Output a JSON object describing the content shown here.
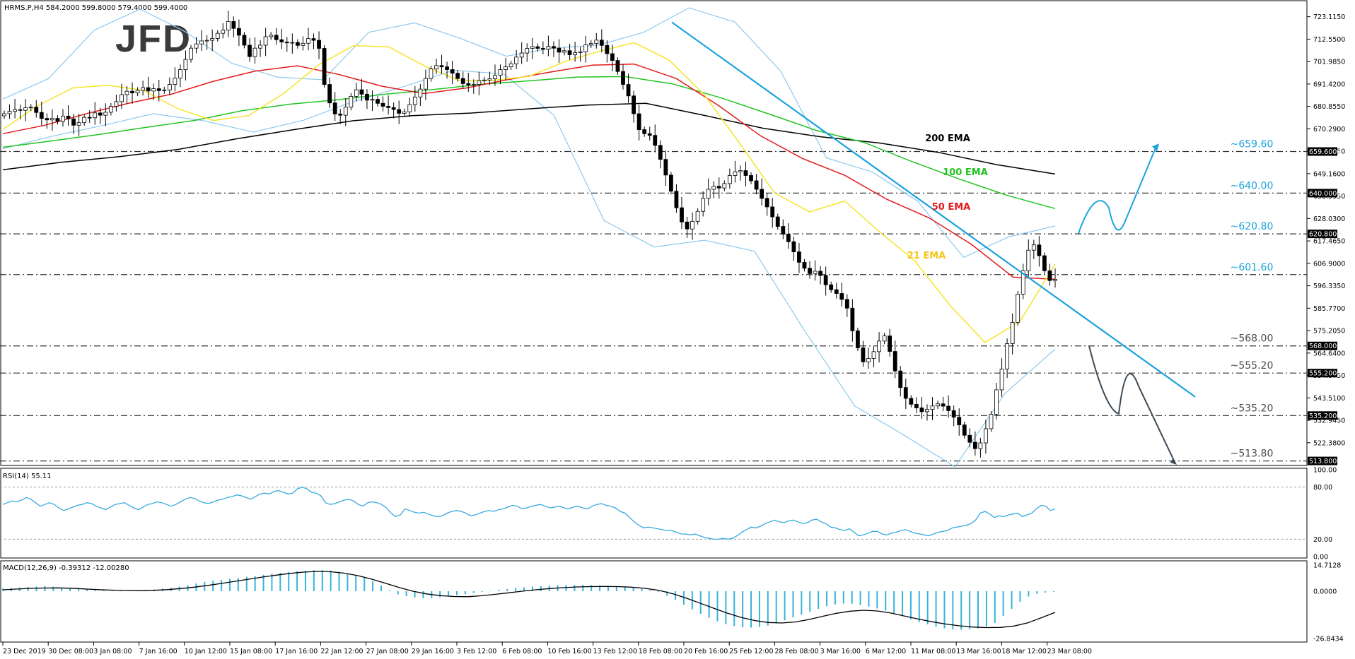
{
  "header": {
    "symbol_info": "HRMS.P,H4  584.2000 599.8000 579.4000 599.4000",
    "logo_text": "JFD"
  },
  "colors": {
    "candle_up": "#ffffff",
    "candle_down": "#000000",
    "ema21": "#f5e52a",
    "ema50": "#e31a1a",
    "ema100": "#22c322",
    "ema200": "#000000",
    "bollinger": "#8ec9ee",
    "trendline": "#1ba3dc",
    "projection_up": "#1ba3dc",
    "projection_down": "#3d4a55",
    "rsi_line": "#36a9e0",
    "macd_hist": "#36b4d9",
    "level_line": "#333333"
  },
  "chart_data": [
    {
      "type": "candlestick",
      "title": "",
      "ylim": [
        512.0,
        727.0
      ],
      "y_ticks": [
        "723.1150",
        "712.5500",
        "701.9850",
        "691.4200",
        "680.8550",
        "670.2900",
        "659.7250",
        "649.1600",
        "638.5950",
        "628.0300",
        "617.4650",
        "606.9000",
        "596.3350",
        "585.7700",
        "575.2050",
        "564.6400",
        "554.0750",
        "543.5100",
        "532.9450",
        "522.3800"
      ],
      "x_ticks": [
        "23 Dec 2019",
        "30 Dec 08:00",
        "3 Jan 08:00",
        "7 Jan 16:00",
        "10 Jan 12:00",
        "15 Jan 08:00",
        "17 Jan 16:00",
        "22 Jan 12:00",
        "27 Jan 08:00",
        "29 Jan 16:00",
        "3 Feb 12:00",
        "6 Feb 08:00",
        "10 Feb 16:00",
        "13 Feb 12:00",
        "18 Feb 08:00",
        "20 Feb 16:00",
        "25 Feb 12:00",
        "28 Feb 08:00",
        "3 Mar 16:00",
        "6 Mar 12:00",
        "11 Mar 08:00",
        "13 Mar 16:00",
        "18 Mar 12:00",
        "23 Mar 08:00"
      ],
      "close_series": [
        677.4,
        678.5,
        679.3,
        679.0,
        680.2,
        680.5,
        678.0,
        675.2,
        674.5,
        675.2,
        673.8,
        676.3,
        675.0,
        672.0,
        673.2,
        675.7,
        675.5,
        677.8,
        676.7,
        678.1,
        680.9,
        683.1,
        686.4,
        688.0,
        687.2,
        688.4,
        689.7,
        688.1,
        689.2,
        688.3,
        688.6,
        691.2,
        694.2,
        698.2,
        703.0,
        708.3,
        710.3,
        711.7,
        712.0,
        712.9,
        715.3,
        716.8,
        720.9,
        717.6,
        714.4,
        709.7,
        704.3,
        708.3,
        709.7,
        713.7,
        714.4,
        712.3,
        711.2,
        710.8,
        711.0,
        709.6,
        710.6,
        712.8,
        712.0,
        708.2,
        691.2,
        682.5,
        677.3,
        676.7,
        680.5,
        685.6,
        688.7,
        686.6,
        683.8,
        684.2,
        682.3,
        680.9,
        680.3,
        679.4,
        677.6,
        678.3,
        681.7,
        685.3,
        689.0,
        694.0,
        698.5,
        700.1,
        699.5,
        698.2,
        696.5,
        694.0,
        691.6,
        691.0,
        691.2,
        693.0,
        693.3,
        693.9,
        695.5,
        698.2,
        699.5,
        700.9,
        704.1,
        706.0,
        708.2,
        709.0,
        708.2,
        707.8,
        709.1,
        708.3,
        706.4,
        707.1,
        705.2,
        706.2,
        706.6,
        709.9,
        710.5,
        712.1,
        709.6,
        705.7,
        702.5,
        697.3,
        691.2,
        685.8,
        677.4,
        669.9,
        668.0,
        667.2,
        662.5,
        655.9,
        648.5,
        640.9,
        633.1,
        626.4,
        623.1,
        626.7,
        631.4,
        637.5,
        641.8,
        643.2,
        642.4,
        644.5,
        648.3,
        650.1,
        650.6,
        648.3,
        645.8,
        641.8,
        637.5,
        633.5,
        628.8,
        624.3,
        620.7,
        617.1,
        612.3,
        607.4,
        604.6,
        602.1,
        603.2,
        601.2,
        596.8,
        594.5,
        592.7,
        589.9,
        585.8,
        575.1,
        567.1,
        560.5,
        562.1,
        565.3,
        570.3,
        572.7,
        565.4,
        556.2,
        548.4,
        543.3,
        540.5,
        538.8,
        537.0,
        538.1,
        539.7,
        540.7,
        539.6,
        537.5,
        534.4,
        530.8,
        525.9,
        522.6,
        519.6,
        522.3,
        529.0,
        535.8,
        547.3,
        557.1,
        569.1,
        579.1,
        592.4,
        603.4,
        613.1,
        615.6,
        610.5,
        603.4,
        598.8,
        599.4
      ],
      "ema21": [
        670.0,
        681.2,
        689.6,
        690.8,
        688.5,
        679.7,
        674.2,
        676.5,
        686.9,
        700.4,
        709.5,
        708.9,
        700.1,
        693.1,
        693.2,
        695.0,
        701.8,
        706.8,
        710.9,
        702.6,
        686.3,
        663.6,
        640.1,
        631.1,
        636.3,
        621.7,
        608.1,
        587.2,
        569.6,
        579.6,
        606.6
      ],
      "ema50": [
        668.0,
        672.0,
        677.5,
        682.4,
        686.6,
        692.7,
        697.5,
        700.0,
        695.8,
        690.4,
        686.9,
        689.5,
        693.5,
        697.0,
        700.3,
        700.8,
        694.0,
        681.3,
        667.0,
        656.3,
        648.4,
        637.1,
        628.4,
        616.0,
        600.4,
        599.4
      ],
      "ema100": [
        661.6,
        664.5,
        667.6,
        671.0,
        674.2,
        678.8,
        681.9,
        684.0,
        686.6,
        688.8,
        691.3,
        692.9,
        694.7,
        694.9,
        691.5,
        685.0,
        677.4,
        669.6,
        663.9,
        654.9,
        646.6,
        638.9,
        632.7
      ],
      "ema200": [
        651.0,
        654.5,
        657.2,
        660.6,
        665.6,
        670.0,
        674.1,
        676.5,
        677.7,
        679.7,
        681.5,
        682.3,
        676.6,
        670.6,
        666.5,
        663.6,
        659.2,
        653.4,
        649.0
      ],
      "bb_upper": [
        684.3,
        694.0,
        716.8,
        726.7,
        715.9,
        701.2,
        694.7,
        693.4,
        715.8,
        720.2,
        712.9,
        704.5,
        708.3,
        709.7,
        715.7,
        727.3,
        720.6,
        697.5,
        656.6,
        650.0,
        636.1,
        609.7,
        619.5,
        624.5
      ],
      "bb_lower": [
        660.9,
        666.9,
        671.9,
        677.4,
        674.1,
        668.8,
        674.3,
        683.2,
        690.2,
        697.9,
        696.1,
        676.6,
        627.0,
        614.6,
        617.8,
        612.6,
        575.2,
        539.7,
        525.7,
        511.1,
        545.6,
        566.5
      ],
      "trendline": {
        "start": [
          "18 Feb 08:00",
          720.5
        ],
        "end": [
          "projection",
          544.0
        ]
      },
      "horizontal_levels": [
        {
          "value": 659.6,
          "label": "~659.60",
          "axis_tag": "659.6000"
        },
        {
          "value": 640.0,
          "label": "~640.00",
          "axis_tag": "640.0000"
        },
        {
          "value": 620.8,
          "label": "~620.80",
          "axis_tag": "620.8000"
        },
        {
          "value": 601.6,
          "label": "~601.60",
          "axis_tag": ""
        },
        {
          "value": 568.0,
          "label": "~568.00",
          "axis_tag": "568.0000"
        },
        {
          "value": 555.2,
          "label": "~555.20",
          "axis_tag": "555.2000"
        },
        {
          "value": 535.2,
          "label": "~535.20",
          "axis_tag": "535.2000"
        },
        {
          "value": 513.8,
          "label": "~513.80",
          "axis_tag": "513.8000"
        }
      ],
      "annotations": [
        {
          "text": "200 EMA",
          "color": "#000000"
        },
        {
          "text": "100 EMA",
          "color": "#22c322"
        },
        {
          "text": "50 EMA",
          "color": "#e31a1a"
        },
        {
          "text": "21 EMA",
          "color": "#f5c518"
        }
      ],
      "projection_up_path": [
        621.0,
        636.0,
        624.0,
        662.0
      ],
      "projection_down_path": [
        568.0,
        540.0,
        555.0,
        513.0
      ]
    },
    {
      "type": "line",
      "title": "RSI(14) 55.11",
      "ylim": [
        0,
        100
      ],
      "y_ticks": [
        "100.00",
        "80.00",
        "20.00",
        "0.00"
      ],
      "levels": [
        80,
        20
      ],
      "values": [
        60,
        62,
        64,
        63,
        65,
        68,
        66,
        62,
        58,
        60,
        62,
        60,
        56,
        53,
        55,
        57,
        59,
        60,
        62,
        61,
        58,
        56,
        54,
        57,
        60,
        61,
        62,
        59,
        56,
        54,
        57,
        60,
        61,
        63,
        62,
        60,
        58,
        60,
        63,
        66,
        68,
        67,
        64,
        62,
        61,
        63,
        65,
        66,
        68,
        69,
        71,
        70,
        68,
        66,
        69,
        72,
        73,
        72,
        75,
        76,
        74,
        72,
        73,
        78,
        80,
        78,
        74,
        73,
        70,
        62,
        60,
        61,
        63,
        65,
        66,
        64,
        60,
        58,
        62,
        63,
        62,
        60,
        56,
        50,
        46,
        48,
        55,
        53,
        51,
        50,
        51,
        49,
        47,
        46,
        47,
        50,
        52,
        53,
        52,
        50,
        47,
        48,
        50,
        52,
        53,
        52,
        54,
        55,
        57,
        59,
        58,
        55,
        56,
        58,
        59,
        60,
        58,
        56,
        57,
        58,
        56,
        55,
        57,
        58,
        56,
        55,
        58,
        60,
        61,
        59,
        58,
        56,
        52,
        50,
        45,
        40,
        36,
        33,
        34,
        33,
        32,
        31,
        30,
        30,
        28,
        26,
        26,
        25,
        26,
        24,
        22,
        21,
        20,
        20,
        21,
        20,
        21,
        24,
        28,
        31,
        34,
        33,
        35,
        38,
        40,
        42,
        40,
        39,
        41,
        42,
        40,
        38,
        39,
        42,
        43,
        40,
        38,
        34,
        33,
        31,
        30,
        32,
        28,
        24,
        25,
        27,
        29,
        29,
        26,
        25,
        27,
        28,
        30,
        31,
        29,
        27,
        26,
        25,
        24,
        26,
        28,
        29,
        30,
        33,
        34,
        35,
        36,
        38,
        42,
        50,
        52,
        49,
        45,
        47,
        46,
        48,
        49,
        50,
        46,
        48,
        50,
        55,
        59,
        58,
        53,
        55
      ],
      "x_ticks": [
        "23 Dec 2019",
        "30 Dec 08:00",
        "3 Jan 08:00",
        "7 Jan 16:00",
        "10 Jan 12:00",
        "15 Jan 08:00",
        "17 Jan 16:00",
        "22 Jan 12:00",
        "27 Jan 08:00",
        "29 Jan 16:00",
        "3 Feb 12:00",
        "6 Feb 08:00",
        "10 Feb 16:00",
        "13 Feb 12:00",
        "18 Feb 08:00",
        "20 Feb 16:00",
        "25 Feb 12:00",
        "28 Feb 08:00",
        "3 Mar 16:00",
        "6 Mar 12:00",
        "11 Mar 08:00",
        "13 Mar 16:00",
        "18 Mar 12:00",
        "23 Mar 08:00"
      ]
    },
    {
      "type": "bar",
      "title": "MACD(12,26,9) -0.39312 -12.00280",
      "ylim": [
        -28.0,
        16.0
      ],
      "y_ticks": [
        "14.7128",
        "0.0000",
        "-26.8434"
      ],
      "histogram": [
        1.5,
        1.8,
        2.1,
        2.4,
        2.6,
        2.8,
        2.5,
        2.0,
        1.6,
        1.3,
        1.1,
        0.9,
        0.6,
        0.4,
        0.2,
        0.1,
        0.3,
        0.6,
        1.0,
        1.4,
        1.9,
        2.6,
        3.4,
        4.4,
        5.3,
        5.9,
        6.4,
        7.0,
        7.5,
        8.1,
        8.6,
        9.3,
        9.9,
        10.4,
        10.9,
        11.3,
        11.6,
        11.9,
        12.0,
        11.7,
        11.0,
        10.0,
        9.0,
        7.5,
        5.6,
        3.2,
        0.5,
        -1.8,
        -2.8,
        -3.6,
        -4.0,
        -3.9,
        -3.5,
        -3.0,
        -2.3,
        -1.7,
        -1.0,
        -0.4,
        0.2,
        0.8,
        1.3,
        1.8,
        2.2,
        2.6,
        2.9,
        3.2,
        3.4,
        3.5,
        3.6,
        3.5,
        3.5,
        3.3,
        3.0,
        2.7,
        2.3,
        1.8,
        1.3,
        0.6,
        -0.5,
        -2.6,
        -5.0,
        -7.6,
        -10.3,
        -12.8,
        -15.1,
        -17.1,
        -18.7,
        -19.8,
        -20.4,
        -20.6,
        -20.3,
        -19.5,
        -18.2,
        -16.5,
        -14.8,
        -13.2,
        -11.6,
        -10.0,
        -8.5,
        -7.5,
        -7.0,
        -7.1,
        -7.8,
        -8.7,
        -9.8,
        -11.0,
        -12.5,
        -14.2,
        -16.0,
        -17.5,
        -18.8,
        -20.1,
        -21.0,
        -21.6,
        -21.8,
        -21.6,
        -21.0,
        -19.9,
        -18.0,
        -14.0,
        -10.0,
        -6.0,
        -3.0,
        -1.5,
        -0.8,
        -0.4
      ],
      "signal": [
        0.8,
        1.2,
        1.6,
        1.8,
        1.9,
        1.7,
        1.3,
        0.9,
        0.6,
        0.4,
        0.3,
        0.5,
        0.9,
        1.5,
        2.3,
        3.3,
        4.4,
        5.6,
        6.8,
        8.0,
        9.1,
        10.1,
        10.8,
        11.2,
        11.0,
        10.2,
        8.8,
        6.8,
        4.5,
        2.1,
        0.0,
        -1.5,
        -2.5,
        -3.0,
        -3.1,
        -2.6,
        -1.8,
        -0.9,
        0.0,
        0.8,
        1.5,
        2.0,
        2.4,
        2.6,
        2.7,
        2.6,
        2.3,
        1.6,
        0.5,
        -1.4,
        -3.9,
        -6.7,
        -9.6,
        -12.4,
        -14.8,
        -16.6,
        -17.7,
        -18.0,
        -17.4,
        -16.0,
        -14.2,
        -12.5,
        -11.3,
        -10.8,
        -11.2,
        -12.4,
        -14.1,
        -15.8,
        -17.3,
        -18.6,
        -19.6,
        -20.3,
        -20.6,
        -20.5,
        -19.7,
        -17.9,
        -15.0,
        -12.0
      ],
      "x_ticks": [
        "23 Dec 2019",
        "30 Dec 08:00",
        "3 Jan 08:00",
        "7 Jan 16:00",
        "10 Jan 12:00",
        "15 Jan 08:00",
        "17 Jan 16:00",
        "22 Jan 12:00",
        "27 Jan 08:00",
        "29 Jan 16:00",
        "3 Feb 12:00",
        "6 Feb 08:00",
        "10 Feb 16:00",
        "13 Feb 12:00",
        "18 Feb 08:00",
        "20 Feb 16:00",
        "25 Feb 12:00",
        "28 Feb 08:00",
        "3 Mar 16:00",
        "6 Mar 12:00",
        "11 Mar 08:00",
        "13 Mar 16:00",
        "18 Mar 12:00",
        "23 Mar 08:00"
      ]
    }
  ]
}
